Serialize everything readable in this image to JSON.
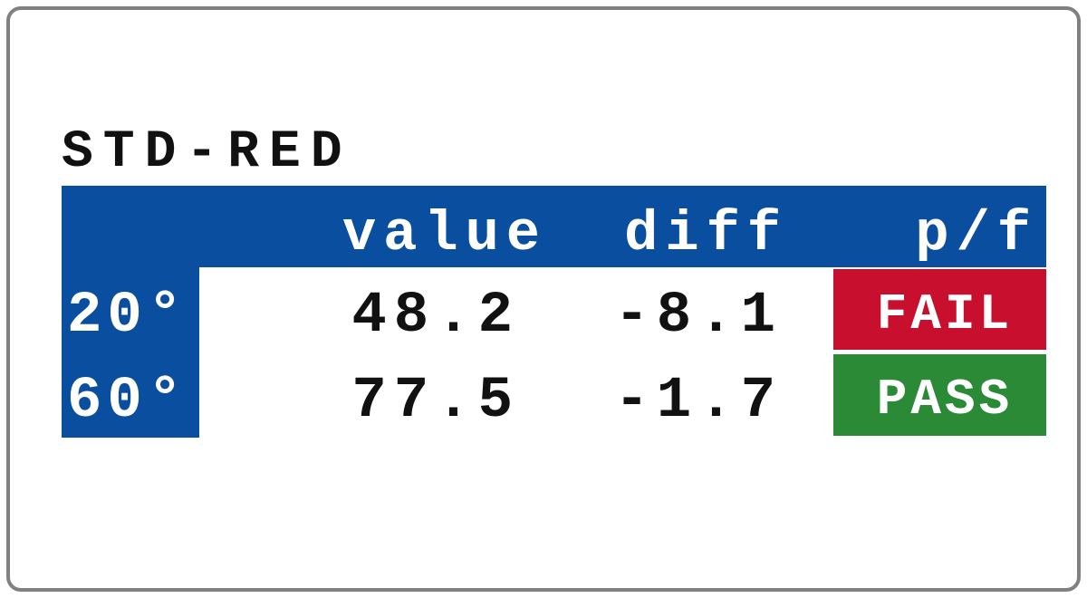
{
  "title": "STD-RED",
  "table": {
    "header": [
      "value",
      "diff",
      "p/f"
    ],
    "rows": [
      [
        "20°",
        "48.2",
        "-8.1",
        "FAIL"
      ],
      [
        "60°",
        "77.5",
        "-1.7",
        "PASS"
      ]
    ]
  }
}
